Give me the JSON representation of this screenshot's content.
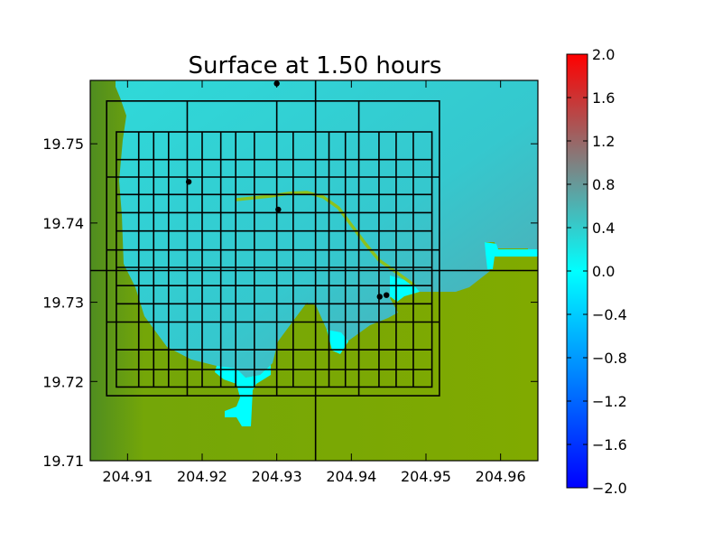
{
  "chart_data": {
    "type": "heatmap",
    "title": "Surface at 1.50 hours",
    "xlabel": "",
    "ylabel": "",
    "xlim": [
      204.905,
      204.965
    ],
    "ylim": [
      19.71,
      19.758
    ],
    "x_ticks": [
      {
        "value": 204.91,
        "label": "204.91"
      },
      {
        "value": 204.92,
        "label": "204.92"
      },
      {
        "value": 204.93,
        "label": "204.93"
      },
      {
        "value": 204.94,
        "label": "204.94"
      },
      {
        "value": 204.95,
        "label": "204.95"
      },
      {
        "value": 204.96,
        "label": "204.96"
      }
    ],
    "y_ticks": [
      {
        "value": 19.71,
        "label": "19.71"
      },
      {
        "value": 19.72,
        "label": "19.72"
      },
      {
        "value": 19.73,
        "label": "19.73"
      },
      {
        "value": 19.74,
        "label": "19.74"
      },
      {
        "value": 19.75,
        "label": "19.75"
      }
    ],
    "colorbar": {
      "range": [
        -2.0,
        2.0
      ],
      "ticks": [
        {
          "value": 2.0,
          "label": "2.0"
        },
        {
          "value": 1.6,
          "label": "1.6"
        },
        {
          "value": 1.2,
          "label": "1.2"
        },
        {
          "value": 0.8,
          "label": "0.8"
        },
        {
          "value": 0.4,
          "label": "0.4"
        },
        {
          "value": 0.0,
          "label": "0.0"
        },
        {
          "value": -0.4,
          "label": "−0.4"
        },
        {
          "value": -0.8,
          "label": "−0.8"
        },
        {
          "value": -1.2,
          "label": "−1.2"
        },
        {
          "value": -1.6,
          "label": "−1.6"
        },
        {
          "value": -2.0,
          "label": "−2.0"
        }
      ],
      "stops": [
        "#0000ff",
        "#00ffff",
        "#808080",
        "#ff0000"
      ]
    },
    "colors": {
      "land": "#7fa900",
      "land_dark": "#4f8a1e",
      "water_shallow": "#00ffff",
      "water_main": "#2fd3d3",
      "water_deep": "#4aaeb2",
      "shoreline": "#8cc21d",
      "grid_line": "#000000",
      "gauge_point": "#000000"
    },
    "gauges": [
      {
        "x": 204.93,
        "y": 19.7576
      },
      {
        "x": 204.9182,
        "y": 19.7452
      },
      {
        "x": 204.9302,
        "y": 19.7417
      },
      {
        "x": 204.9438,
        "y": 19.7307
      },
      {
        "x": 204.9447,
        "y": 19.7309
      }
    ],
    "patch_boxes": [
      {
        "x": [
          204.9072,
          204.9518
        ],
        "y": [
          19.7182,
          19.7554
        ]
      },
      {
        "x": [
          204.9085,
          204.9508
        ],
        "y": [
          19.7193,
          19.7515
        ]
      }
    ],
    "grid_lines": {
      "outer_vertical_x": [
        204.918,
        204.93,
        204.941
      ],
      "outer_horizontal_y": [
        19.7275,
        19.7366,
        19.7458
      ],
      "inner_vertical_x": [
        204.9115,
        204.9135,
        204.9155,
        204.92,
        204.9225,
        204.9245,
        204.927,
        204.9322,
        204.937,
        204.9392,
        204.9437,
        204.946,
        204.9483
      ],
      "inner_horizontal_y": [
        19.7215,
        19.724,
        19.7298,
        19.7321,
        19.7344,
        19.739,
        19.7413,
        19.7436,
        19.748
      ],
      "full_vertical_x": [
        204.9352
      ],
      "full_horizontal_y": [
        19.734
      ]
    }
  }
}
